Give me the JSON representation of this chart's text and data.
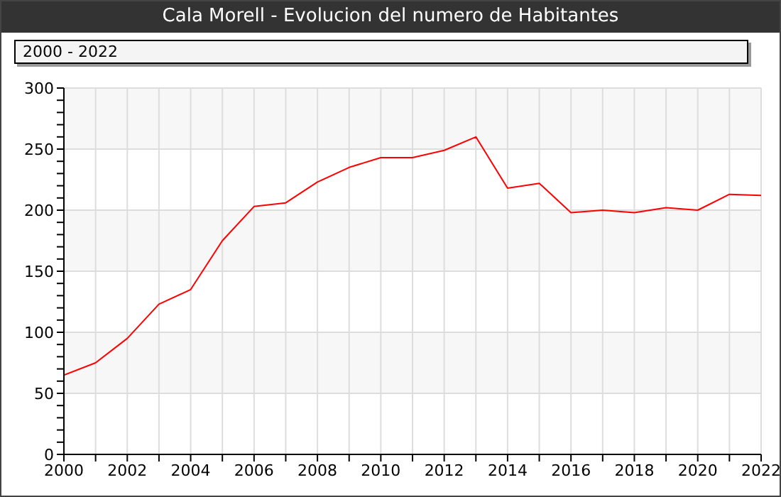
{
  "chart_data": {
    "type": "line",
    "title": "Cala Morell - Evolucion del numero de Habitantes",
    "subtitle": "2000 - 2022",
    "x": [
      2000,
      2001,
      2002,
      2003,
      2004,
      2005,
      2006,
      2007,
      2008,
      2009,
      2010,
      2011,
      2012,
      2013,
      2014,
      2015,
      2016,
      2017,
      2018,
      2019,
      2020,
      2021,
      2022
    ],
    "series": [
      {
        "color": "#ff0000",
        "values": [
          65,
          75,
          95,
          123,
          135,
          175,
          203,
          206,
          223,
          235,
          243,
          243,
          249,
          260,
          218,
          222,
          198,
          200,
          198,
          202,
          200,
          213,
          212
        ]
      }
    ],
    "xlim": [
      2000,
      2022
    ],
    "xticks": [
      2000,
      {
        "value": 2001,
        "label": null
      },
      2002,
      {
        "value": 2003,
        "label": null
      },
      2004,
      {
        "value": 2005,
        "label": null
      },
      2006,
      {
        "value": 2007,
        "label": null
      },
      2008,
      {
        "value": 2009,
        "label": null
      },
      2010,
      {
        "value": 2011,
        "label": null
      },
      2012,
      {
        "value": 2013,
        "label": null
      },
      2014,
      {
        "value": 2015,
        "label": null
      },
      2016,
      {
        "value": 2017,
        "label": null
      },
      2018,
      {
        "value": 2019,
        "label": null
      },
      2020,
      {
        "value": 2021,
        "label": null
      },
      2022
    ],
    "ylim": [
      0,
      300
    ],
    "yticks": [
      0,
      {
        "value": 10,
        "label": null
      },
      {
        "value": 20,
        "label": null
      },
      {
        "value": 30,
        "label": null
      },
      {
        "value": 40,
        "label": null
      },
      50,
      {
        "value": 60,
        "label": null
      },
      {
        "value": 70,
        "label": null
      },
      {
        "value": 80,
        "label": null
      },
      {
        "value": 90,
        "label": null
      },
      100,
      {
        "value": 110,
        "label": null
      },
      {
        "value": 120,
        "label": null
      },
      {
        "value": 130,
        "label": null
      },
      {
        "value": 140,
        "label": null
      },
      150,
      {
        "value": 160,
        "label": null
      },
      {
        "value": 170,
        "label": null
      },
      {
        "value": 180,
        "label": null
      },
      {
        "value": 190,
        "label": null
      },
      200,
      {
        "value": 210,
        "label": null
      },
      {
        "value": 220,
        "label": null
      },
      {
        "value": 230,
        "label": null
      },
      {
        "value": 240,
        "label": null
      },
      250,
      {
        "value": 260,
        "label": null
      },
      {
        "value": 270,
        "label": null
      },
      {
        "value": 280,
        "label": null
      },
      {
        "value": 290,
        "label": null
      },
      300
    ],
    "grid": true,
    "marker": "none",
    "line_style": "solid"
  }
}
